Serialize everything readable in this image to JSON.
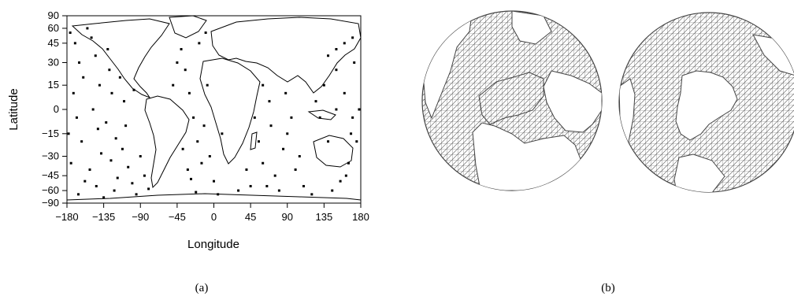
{
  "figure": {
    "panel_a": {
      "caption": "(a)",
      "xlabel": "Longitude",
      "ylabel": "Latitude"
    },
    "panel_b": {
      "caption": "(b)"
    },
    "colors": {
      "ink": "#000000",
      "mesh": "#555555",
      "background": "#ffffff"
    }
  },
  "chart_data": [
    {
      "type": "scatter",
      "xlabel": "Longitude",
      "ylabel": "Latitude",
      "xlim": [
        -180,
        180
      ],
      "ylim": [
        -90,
        90
      ],
      "xticks": [
        -180,
        -135,
        -90,
        -45,
        0,
        45,
        90,
        135,
        180
      ],
      "yticks": [
        90,
        60,
        45,
        30,
        15,
        0,
        -15,
        -30,
        -45,
        -60,
        -90
      ],
      "xtick_labels": [
        "−180",
        "−135",
        "−90",
        "−45",
        "0",
        "45",
        "90",
        "135",
        "180"
      ],
      "ytick_labels": [
        "90",
        "60",
        "45",
        "30",
        "15",
        "0",
        "−15",
        "−30",
        "−45",
        "−60",
        "−90"
      ],
      "y_scale": "sine of latitude",
      "grid": false,
      "background": "world coastline map",
      "points": [
        [
          -170,
          45
        ],
        [
          -165,
          30
        ],
        [
          -160,
          20
        ],
        [
          -172,
          10
        ],
        [
          -168,
          -5
        ],
        [
          -162,
          -20
        ],
        [
          -175,
          -35
        ],
        [
          -158,
          -50
        ],
        [
          -166,
          -65
        ],
        [
          -150,
          50
        ],
        [
          -145,
          35
        ],
        [
          -140,
          15
        ],
        [
          -148,
          0
        ],
        [
          -142,
          -12
        ],
        [
          -138,
          -28
        ],
        [
          -152,
          -40
        ],
        [
          -144,
          -55
        ],
        [
          -135,
          -70
        ],
        [
          -130,
          40
        ],
        [
          -128,
          25
        ],
        [
          -125,
          10
        ],
        [
          -132,
          -8
        ],
        [
          -120,
          -18
        ],
        [
          -126,
          -33
        ],
        [
          -118,
          -47
        ],
        [
          -122,
          -60
        ],
        [
          -110,
          5
        ],
        [
          -108,
          -10
        ],
        [
          -112,
          -25
        ],
        [
          -105,
          -38
        ],
        [
          -100,
          -52
        ],
        [
          -95,
          -65
        ],
        [
          -115,
          20
        ],
        [
          -155,
          60
        ],
        [
          -178,
          -15
        ],
        [
          -176,
          55
        ],
        [
          -90,
          -30
        ],
        [
          -85,
          -45
        ],
        [
          -80,
          -58
        ],
        [
          -98,
          12
        ],
        [
          -40,
          40
        ],
        [
          -35,
          25
        ],
        [
          -30,
          10
        ],
        [
          -25,
          -5
        ],
        [
          -20,
          -20
        ],
        [
          -15,
          -35
        ],
        [
          -28,
          -48
        ],
        [
          -22,
          -62
        ],
        [
          -45,
          30
        ],
        [
          -50,
          15
        ],
        [
          -10,
          55
        ],
        [
          -5,
          -30
        ],
        [
          0,
          -50
        ],
        [
          5,
          -65
        ],
        [
          10,
          -15
        ],
        [
          -12,
          -10
        ],
        [
          -8,
          15
        ],
        [
          -38,
          -25
        ],
        [
          -32,
          -40
        ],
        [
          -18,
          45
        ],
        [
          55,
          -20
        ],
        [
          60,
          -35
        ],
        [
          70,
          -10
        ],
        [
          75,
          -45
        ],
        [
          85,
          -25
        ],
        [
          95,
          -5
        ],
        [
          100,
          -40
        ],
        [
          80,
          -60
        ],
        [
          65,
          -55
        ],
        [
          90,
          -15
        ],
        [
          50,
          -5
        ],
        [
          105,
          -30
        ],
        [
          110,
          -55
        ],
        [
          120,
          -65
        ],
        [
          60,
          15
        ],
        [
          88,
          10
        ],
        [
          68,
          5
        ],
        [
          45,
          -55
        ],
        [
          30,
          -60
        ],
        [
          40,
          -40
        ],
        [
          140,
          35
        ],
        [
          150,
          25
        ],
        [
          160,
          10
        ],
        [
          170,
          -5
        ],
        [
          175,
          -20
        ],
        [
          165,
          -35
        ],
        [
          155,
          -50
        ],
        [
          145,
          -60
        ],
        [
          160,
          45
        ],
        [
          172,
          30
        ],
        [
          178,
          0
        ],
        [
          150,
          0
        ],
        [
          135,
          15
        ],
        [
          168,
          -15
        ],
        [
          130,
          -5
        ],
        [
          125,
          5
        ],
        [
          140,
          -20
        ],
        [
          162,
          -45
        ],
        [
          170,
          50
        ],
        [
          150,
          40
        ]
      ]
    }
  ]
}
